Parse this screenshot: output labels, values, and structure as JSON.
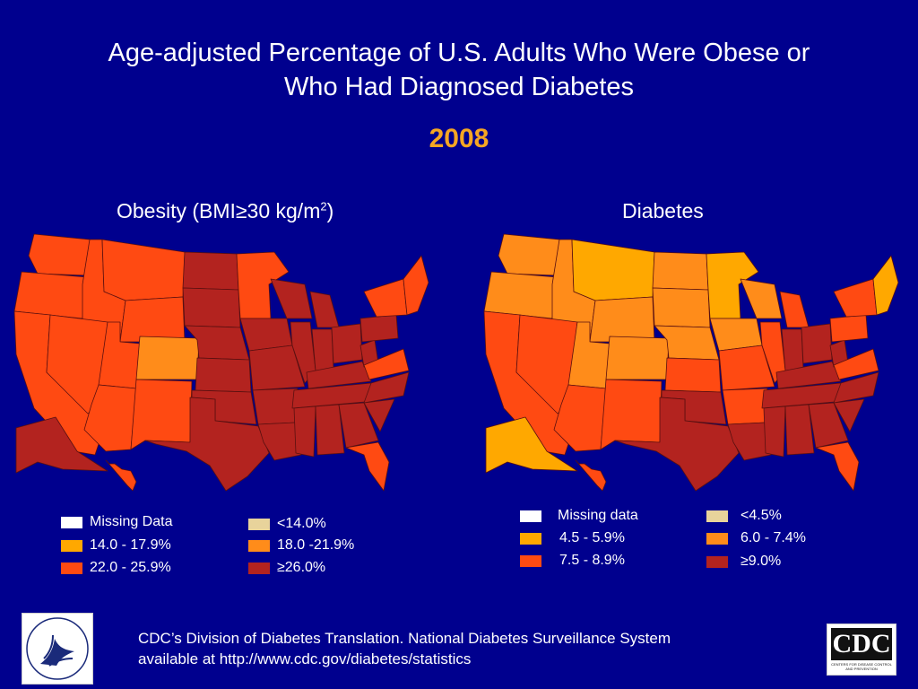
{
  "title_line1": "Age-adjusted Percentage of U.S. Adults Who Were Obese or",
  "title_line2": "Who Had Diagnosed Diabetes",
  "year": "2008",
  "colors": {
    "background": "#00008e",
    "missing": "#ffffff",
    "tan": "#e8d39b",
    "light_orange": "#ffa800",
    "orange": "#ff8c1a",
    "red_orange": "#ff4a12",
    "dark_red": "#b3231f"
  },
  "obesity": {
    "title_main": "Obesity (BMI≥30 kg/m",
    "title_sup": "2",
    "title_end": ")",
    "legend": [
      {
        "label": "Missing Data",
        "color": "#ffffff"
      },
      {
        "label": "<14.0%",
        "color": "#e8d39b"
      },
      {
        "label": "14.0 - 17.9%",
        "color": "#ffa800"
      },
      {
        "label": "18.0 -21.9%",
        "color": "#ff8c1a"
      },
      {
        "label": "22.0 - 25.9%",
        "color": "#ff4a12"
      },
      {
        "label": "≥26.0%",
        "color": "#b3231f"
      }
    ]
  },
  "diabetes": {
    "title": "Diabetes",
    "legend": [
      {
        "label": "Missing data",
        "color": "#ffffff"
      },
      {
        "label": "<4.5%",
        "color": "#e8d39b"
      },
      {
        "label": "4.5 - 5.9%",
        "color": "#ffa800"
      },
      {
        "label": "6.0 - 7.4%",
        "color": "#ff8c1a"
      },
      {
        "label": "7.5 - 8.9%",
        "color": "#ff4a12"
      },
      {
        "label": "≥9.0%",
        "color": "#b3231f"
      }
    ]
  },
  "source_line1": "CDC’s Division of Diabetes Translation.  National Diabetes Surveillance System",
  "source_line2": "available at http://www.cdc.gov/diabetes/statistics",
  "cdc_logo_text": "CDC",
  "cdc_logo_subtext": "CENTERS FOR DISEASE CONTROL AND PREVENTION",
  "hhs_logo_text": "DEPARTMENT OF HEALTH & HUMAN SERVICES USA"
}
